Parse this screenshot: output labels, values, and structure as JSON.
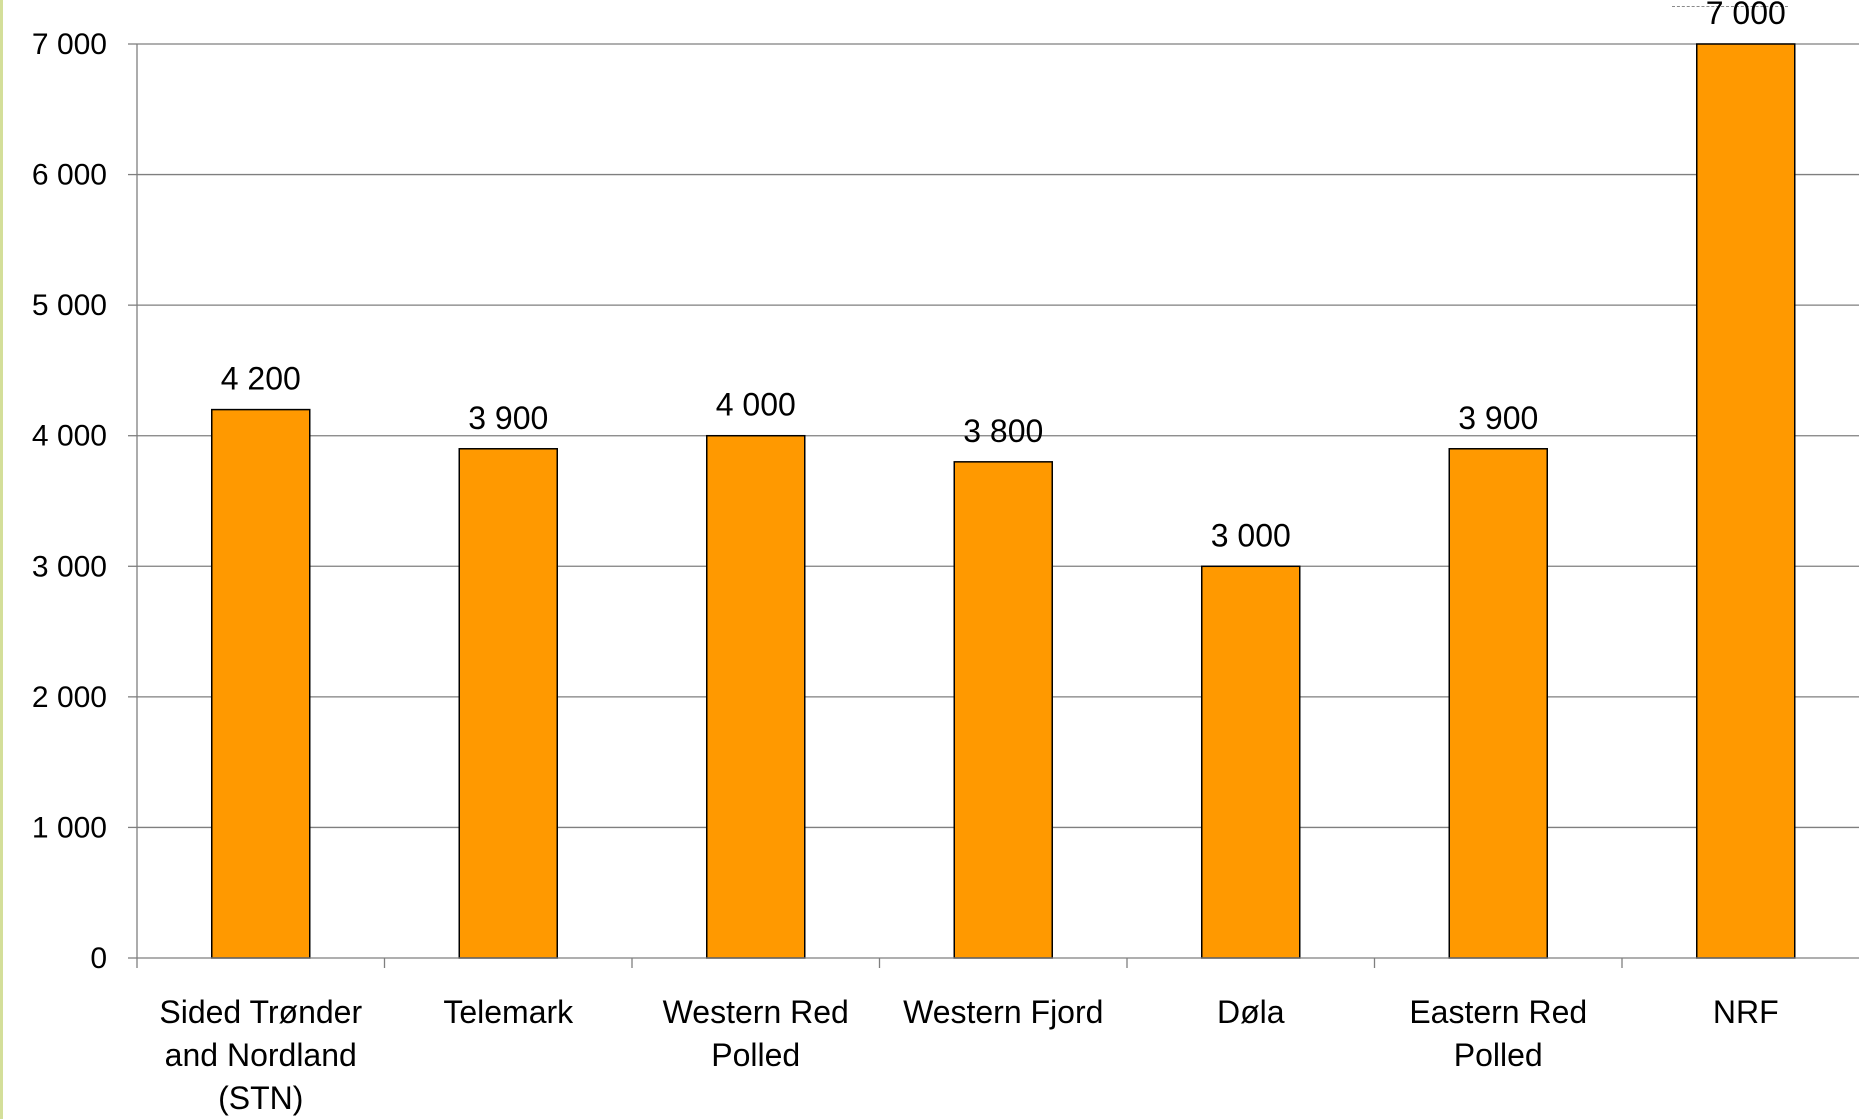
{
  "chart_data": {
    "type": "bar",
    "categories": [
      [
        "Sided Trønder",
        "and Nordland",
        "(STN)"
      ],
      [
        "Telemark"
      ],
      [
        "Western Red",
        "Polled"
      ],
      [
        "Western Fjord"
      ],
      [
        "Døla"
      ],
      [
        "Eastern Red",
        "Polled"
      ],
      [
        "NRF"
      ]
    ],
    "values": [
      4200,
      3900,
      4000,
      3800,
      3000,
      3900,
      7000
    ],
    "value_labels": [
      "4 200",
      "3 900",
      "4 000",
      "3 800",
      "3 000",
      "3 900",
      "7 000"
    ],
    "y_ticks": [
      0,
      1000,
      2000,
      3000,
      4000,
      5000,
      6000,
      7000
    ],
    "y_tick_labels": [
      "0",
      "1 000",
      "2 000",
      "3 000",
      "4 000",
      "5 000",
      "6 000",
      "7 000"
    ],
    "ylim": [
      0,
      7000
    ],
    "title": "",
    "xlabel": "",
    "ylabel": "",
    "grid": true,
    "legend": "none",
    "colors": {
      "bar_fill": "#ff9900",
      "bar_stroke": "#000000",
      "gridline": "#7f7f7f",
      "axis": "#7f7f7f",
      "left_accent": "#d4df9a"
    }
  }
}
